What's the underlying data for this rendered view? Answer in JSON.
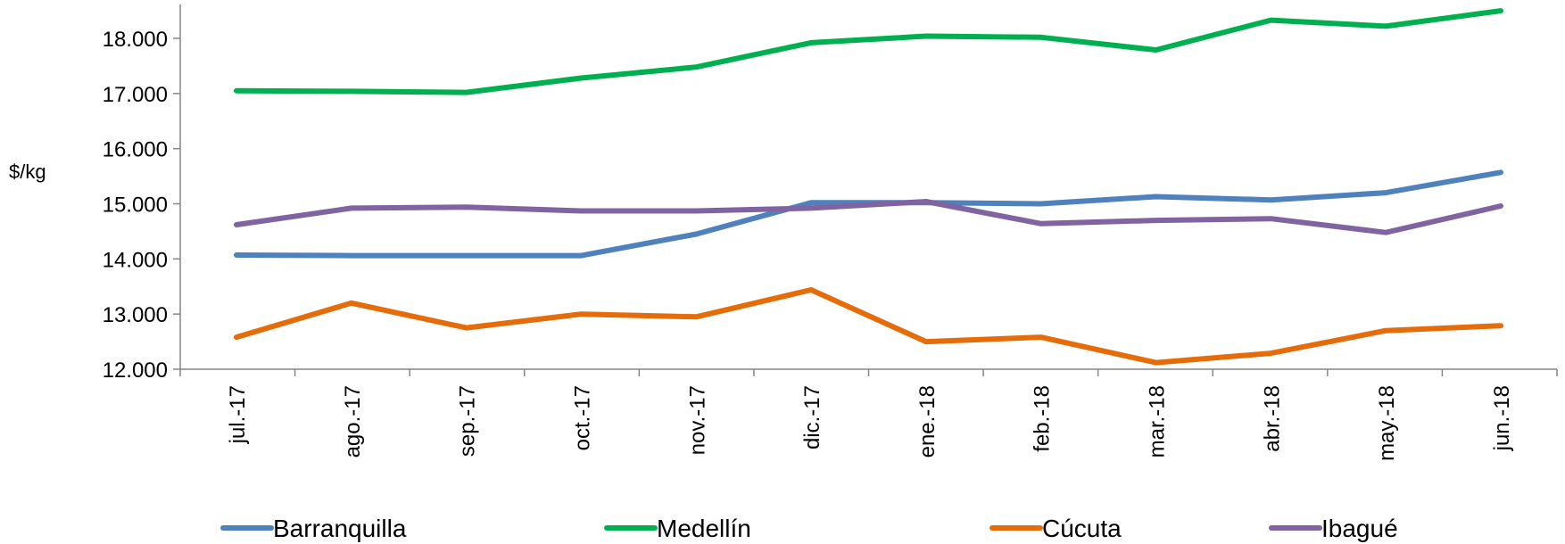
{
  "chart_data": {
    "type": "line",
    "title": "",
    "xlabel": "",
    "ylabel": "$/kg",
    "ylim": [
      12000,
      18500
    ],
    "yticks": [
      12000,
      13000,
      14000,
      15000,
      16000,
      17000,
      18000
    ],
    "ytick_labels": [
      "12.000",
      "13.000",
      "14.000",
      "15.000",
      "16.000",
      "17.000",
      "18.000"
    ],
    "categories": [
      "jul.-17",
      "ago.-17",
      "sep.-17",
      "oct.-17",
      "nov.-17",
      "dic.-17",
      "ene.-18",
      "feb.-18",
      "mar.-18",
      "abr.-18",
      "may.-18",
      "jun.-18"
    ],
    "grid": false,
    "legend_position": "bottom",
    "series": [
      {
        "name": "Barranquilla",
        "color": "#4F81BD",
        "values": [
          14070,
          14060,
          14060,
          14060,
          14450,
          15020,
          15020,
          15000,
          15130,
          15070,
          15200,
          15570
        ]
      },
      {
        "name": "Medellín",
        "color": "#00B050",
        "values": [
          17050,
          17040,
          17020,
          17280,
          17480,
          17920,
          18040,
          18020,
          17790,
          18330,
          18220,
          18500
        ]
      },
      {
        "name": "Cúcuta",
        "color": "#E46C0A",
        "values": [
          12580,
          13200,
          12750,
          13000,
          12950,
          13440,
          12500,
          12580,
          12120,
          12290,
          12700,
          12790
        ]
      },
      {
        "name": "Ibagué",
        "color": "#8064A2",
        "values": [
          14620,
          14920,
          14940,
          14870,
          14870,
          14920,
          15040,
          14640,
          14700,
          14730,
          14480,
          14960
        ]
      }
    ]
  }
}
